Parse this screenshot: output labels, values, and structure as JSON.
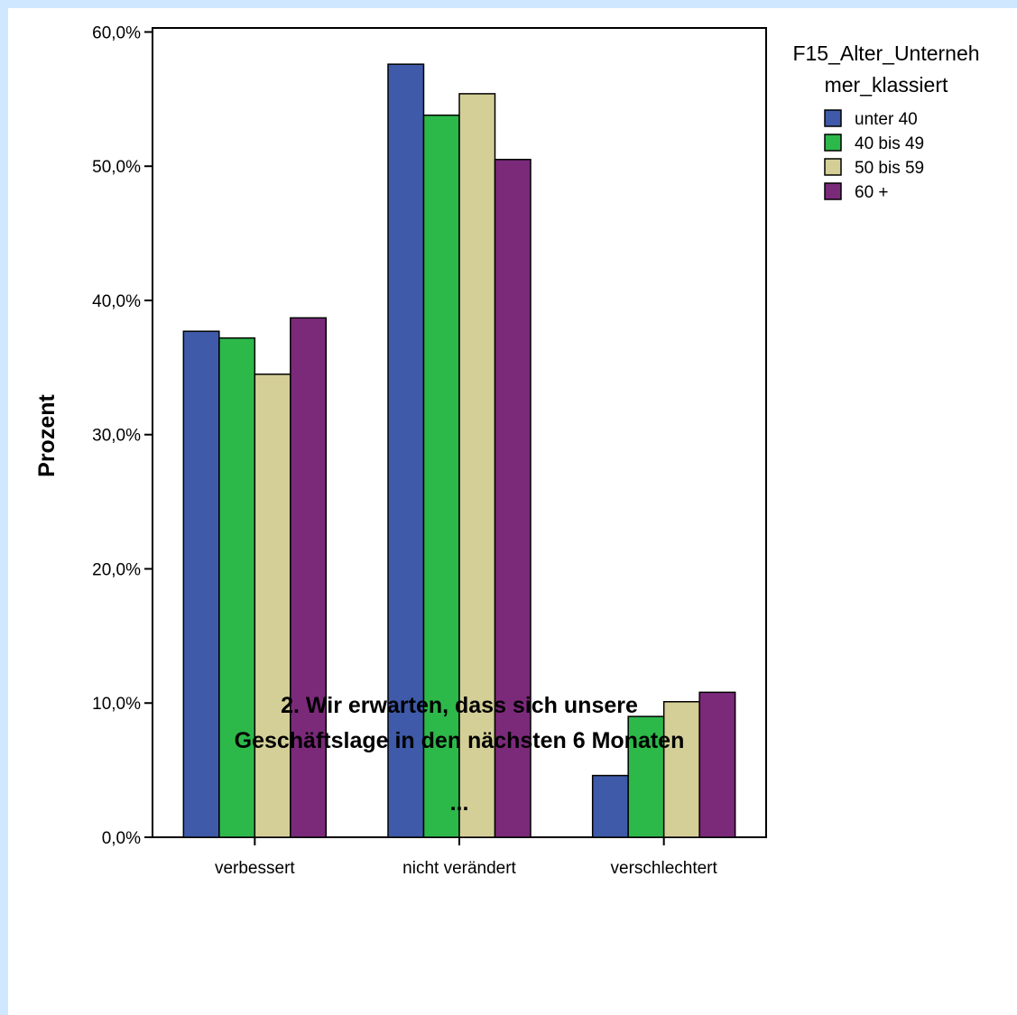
{
  "chart_data": {
    "type": "bar",
    "categories": [
      "verbessert",
      "nicht verändert",
      "verschlechtert"
    ],
    "series": [
      {
        "name": "unter 40",
        "color": "#3e5aa8",
        "values": [
          37.7,
          57.6,
          4.6
        ]
      },
      {
        "name": "40 bis 49",
        "color": "#2db84a",
        "values": [
          37.2,
          53.8,
          9.0
        ]
      },
      {
        "name": "50 bis 59",
        "color": "#d4cf97",
        "values": [
          34.5,
          55.4,
          10.1
        ]
      },
      {
        "name": "60 +",
        "color": "#7b2a7a",
        "values": [
          38.7,
          50.5,
          10.8
        ]
      }
    ],
    "ylabel": "Prozent",
    "xlabel_lines": [
      "2. Wir erwarten, dass sich unsere",
      "Geschäftslage in den nächsten 6 Monaten",
      "..."
    ],
    "yticks": [
      "0,0%",
      "10,0%",
      "20,0%",
      "30,0%",
      "40,0%",
      "50,0%",
      "60,0%"
    ],
    "ytick_values": [
      0,
      10,
      20,
      30,
      40,
      50,
      60
    ],
    "ylim": [
      0,
      60.3
    ],
    "legend_title_lines": [
      "F15_Alter_Unterneh",
      "mer_klassiert"
    ],
    "legend_position": "top-right",
    "grid": false
  }
}
